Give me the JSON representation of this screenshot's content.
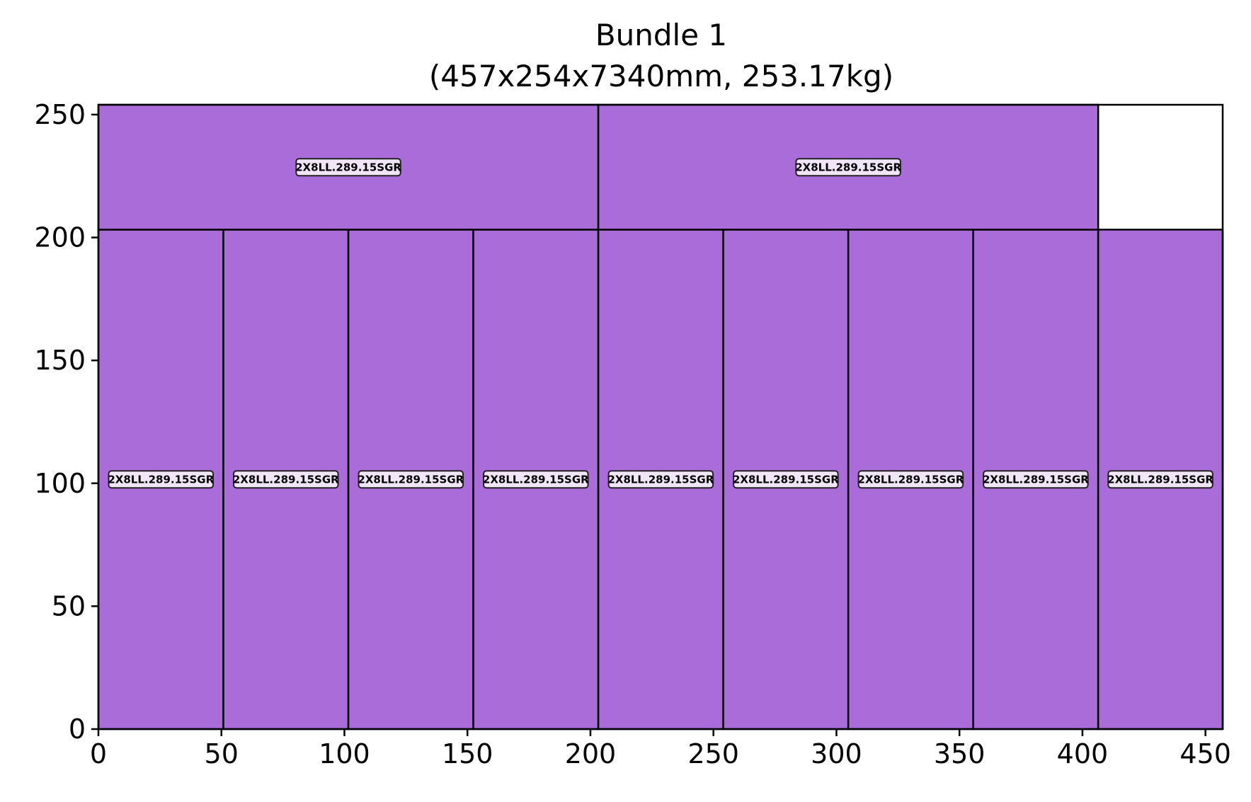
{
  "chart_data": {
    "type": "bar",
    "title": "Bundle 1",
    "subtitle": "(457x254x7340mm, 253.17kg)",
    "xlabel": "",
    "ylabel": "",
    "xlim": [
      0,
      457
    ],
    "ylim": [
      0,
      254
    ],
    "x_ticks": [
      0,
      50,
      100,
      150,
      200,
      250,
      300,
      350,
      400,
      450
    ],
    "y_ticks": [
      0,
      50,
      100,
      150,
      200,
      250
    ],
    "grid": false,
    "legend": "none",
    "fill_color": "#aa6cd9",
    "edge_color": "#000000",
    "label_box_color": "#f0e6f8",
    "pieces": [
      {
        "label": "2X8LL.289.15SGR",
        "x": 0,
        "y": 0,
        "w": 50.8,
        "h": 203.2
      },
      {
        "label": "2X8LL.289.15SGR",
        "x": 50.8,
        "y": 0,
        "w": 50.8,
        "h": 203.2
      },
      {
        "label": "2X8LL.289.15SGR",
        "x": 101.6,
        "y": 0,
        "w": 50.8,
        "h": 203.2
      },
      {
        "label": "2X8LL.289.15SGR",
        "x": 152.4,
        "y": 0,
        "w": 50.8,
        "h": 203.2
      },
      {
        "label": "2X8LL.289.15SGR",
        "x": 203.2,
        "y": 0,
        "w": 50.8,
        "h": 203.2
      },
      {
        "label": "2X8LL.289.15SGR",
        "x": 254.0,
        "y": 0,
        "w": 50.8,
        "h": 203.2
      },
      {
        "label": "2X8LL.289.15SGR",
        "x": 304.8,
        "y": 0,
        "w": 50.8,
        "h": 203.2
      },
      {
        "label": "2X8LL.289.15SGR",
        "x": 355.6,
        "y": 0,
        "w": 50.8,
        "h": 203.2
      },
      {
        "label": "2X8LL.289.15SGR",
        "x": 406.4,
        "y": 0,
        "w": 50.6,
        "h": 203.2
      },
      {
        "label": "2X8LL.289.15SGR",
        "x": 0,
        "y": 203.2,
        "w": 203.2,
        "h": 50.8
      },
      {
        "label": "2X8LL.289.15SGR",
        "x": 203.2,
        "y": 203.2,
        "w": 203.2,
        "h": 50.8
      }
    ]
  }
}
